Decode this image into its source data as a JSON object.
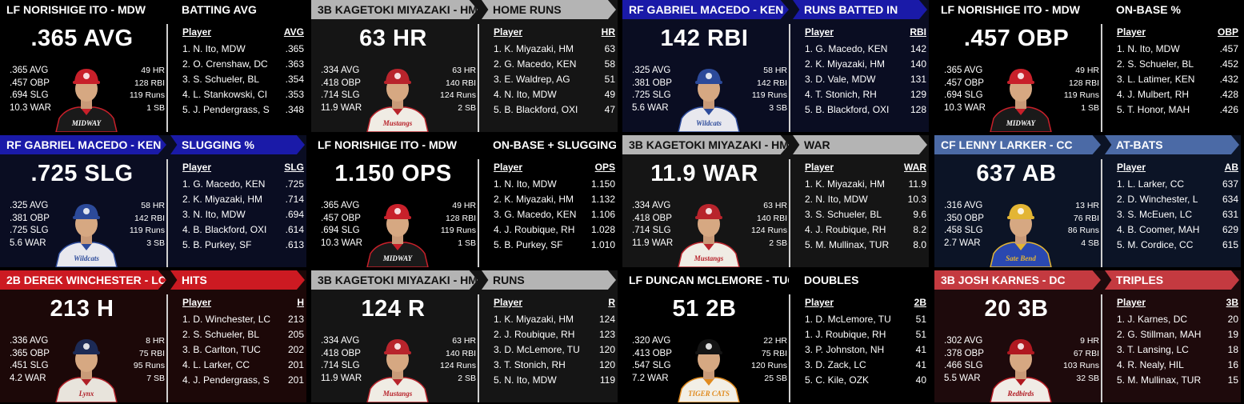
{
  "panels": [
    {
      "player_label": "LF NORISHIGE ITO - MDW",
      "category": "BATTING AVG",
      "headline": ".365 AVG",
      "stats_left": [
        ".365 AVG",
        ".457 OBP",
        ".694 SLG",
        "10.3 WAR"
      ],
      "stats_right": [
        "49 HR",
        "128 RBI",
        "119 Runs",
        "1 SB"
      ],
      "jersey_text": "MIDWAY",
      "col_player": "Player",
      "col_stat": "AVG",
      "leaders": [
        {
          "name": "1. N. Ito, MDW",
          "value": ".365"
        },
        {
          "name": "2. O. Crenshaw, DC",
          "value": ".363"
        },
        {
          "name": "3. S. Schueler, BL",
          "value": ".354"
        },
        {
          "name": "4. L. Stankowski, CI",
          "value": ".353"
        },
        {
          "name": "5. J. Pendergrass, S",
          "value": ".348"
        }
      ],
      "colors": {
        "header_bg": "#000000",
        "header_text": "#ffffff",
        "body_bg": "#000000",
        "cap": "#c8202a",
        "jersey": "#1a1a1a",
        "trim": "#c8202a"
      }
    },
    {
      "player_label": "3B KAGETOKI MIYAZAKI - HM",
      "category": "HOME RUNS",
      "headline": "63 HR",
      "stats_left": [
        ".334 AVG",
        ".418 OBP",
        ".714 SLG",
        "11.9 WAR"
      ],
      "stats_right": [
        "63 HR",
        "140 RBI",
        "124 Runs",
        "2 SB"
      ],
      "jersey_text": "Mustangs",
      "col_player": "Player",
      "col_stat": "HR",
      "leaders": [
        {
          "name": "1. K. Miyazaki, HM",
          "value": "63"
        },
        {
          "name": "2. G. Macedo, KEN",
          "value": "58"
        },
        {
          "name": "3. E. Waldrep, AG",
          "value": "51"
        },
        {
          "name": "4. N. Ito, MDW",
          "value": "49"
        },
        {
          "name": "5. B. Blackford, OXI",
          "value": "47"
        }
      ],
      "colors": {
        "header_bg": "#b4b4b4",
        "header_text": "#111111",
        "body_bg": "#151515",
        "cap": "#b8242c",
        "jersey": "#f0ece4",
        "trim": "#b8242c"
      }
    },
    {
      "player_label": "RF GABRIEL MACEDO - KEN",
      "category": "RUNS BATTED IN",
      "headline": "142 RBI",
      "stats_left": [
        ".325 AVG",
        ".381 OBP",
        ".725 SLG",
        "5.6 WAR"
      ],
      "stats_right": [
        "58 HR",
        "142 RBI",
        "119 Runs",
        "3 SB"
      ],
      "jersey_text": "Wildcats",
      "col_player": "Player",
      "col_stat": "RBI",
      "leaders": [
        {
          "name": "1. G. Macedo, KEN",
          "value": "142"
        },
        {
          "name": "2. K. Miyazaki, HM",
          "value": "140"
        },
        {
          "name": "3. D. Vale, MDW",
          "value": "131"
        },
        {
          "name": "4. T. Stonich, RH",
          "value": "129"
        },
        {
          "name": "5. B. Blackford, OXI",
          "value": "128"
        }
      ],
      "colors": {
        "header_bg": "#1a1aa8",
        "header_text": "#ffffff",
        "body_bg": "#0a0d22",
        "cap": "#2c4a9a",
        "jersey": "#e8e8ee",
        "trim": "#2c4a9a"
      }
    },
    {
      "player_label": "LF NORISHIGE ITO - MDW",
      "category": "ON-BASE %",
      "headline": ".457 OBP",
      "stats_left": [
        ".365 AVG",
        ".457 OBP",
        ".694 SLG",
        "10.3 WAR"
      ],
      "stats_right": [
        "49 HR",
        "128 RBI",
        "119 Runs",
        "1 SB"
      ],
      "jersey_text": "MIDWAY",
      "col_player": "Player",
      "col_stat": "OBP",
      "leaders": [
        {
          "name": "1. N. Ito, MDW",
          "value": ".457"
        },
        {
          "name": "2. S. Schueler, BL",
          "value": ".452"
        },
        {
          "name": "3. L. Latimer, KEN",
          "value": ".432"
        },
        {
          "name": "4. J. Mulbert, RH",
          "value": ".428"
        },
        {
          "name": "5. T. Honor, MAH",
          "value": ".426"
        }
      ],
      "colors": {
        "header_bg": "#000000",
        "header_text": "#ffffff",
        "body_bg": "#000000",
        "cap": "#c8202a",
        "jersey": "#1a1a1a",
        "trim": "#c8202a"
      }
    },
    {
      "player_label": "RF GABRIEL MACEDO - KEN",
      "category": "SLUGGING %",
      "headline": ".725 SLG",
      "stats_left": [
        ".325 AVG",
        ".381 OBP",
        ".725 SLG",
        "5.6 WAR"
      ],
      "stats_right": [
        "58 HR",
        "142 RBI",
        "119 Runs",
        "3 SB"
      ],
      "jersey_text": "Wildcats",
      "col_player": "Player",
      "col_stat": "SLG",
      "leaders": [
        {
          "name": "1. G. Macedo, KEN",
          "value": ".725"
        },
        {
          "name": "2. K. Miyazaki, HM",
          "value": ".714"
        },
        {
          "name": "3. N. Ito, MDW",
          "value": ".694"
        },
        {
          "name": "4. B. Blackford, OXI",
          "value": ".614"
        },
        {
          "name": "5. B. Purkey, SF",
          "value": ".613"
        }
      ],
      "colors": {
        "header_bg": "#1a1aa8",
        "header_text": "#ffffff",
        "body_bg": "#0a0d22",
        "cap": "#2c4a9a",
        "jersey": "#e8e8ee",
        "trim": "#2c4a9a"
      }
    },
    {
      "player_label": "LF NORISHIGE ITO - MDW",
      "category": "ON-BASE + SLUGGING",
      "headline": "1.150 OPS",
      "stats_left": [
        ".365 AVG",
        ".457 OBP",
        ".694 SLG",
        "10.3 WAR"
      ],
      "stats_right": [
        "49 HR",
        "128 RBI",
        "119 Runs",
        "1 SB"
      ],
      "jersey_text": "MIDWAY",
      "col_player": "Player",
      "col_stat": "OPS",
      "leaders": [
        {
          "name": "1. N. Ito, MDW",
          "value": "1.150"
        },
        {
          "name": "2. K. Miyazaki, HM",
          "value": "1.132"
        },
        {
          "name": "3. G. Macedo, KEN",
          "value": "1.106"
        },
        {
          "name": "4. J. Roubique, RH",
          "value": "1.028"
        },
        {
          "name": "5. B. Purkey, SF",
          "value": "1.010"
        }
      ],
      "colors": {
        "header_bg": "#000000",
        "header_text": "#ffffff",
        "body_bg": "#000000",
        "cap": "#c8202a",
        "jersey": "#1a1a1a",
        "trim": "#c8202a"
      }
    },
    {
      "player_label": "3B KAGETOKI MIYAZAKI - HM",
      "category": "WAR",
      "headline": "11.9 WAR",
      "stats_left": [
        ".334 AVG",
        ".418 OBP",
        ".714 SLG",
        "11.9 WAR"
      ],
      "stats_right": [
        "63 HR",
        "140 RBI",
        "124 Runs",
        "2 SB"
      ],
      "jersey_text": "Mustangs",
      "col_player": "Player",
      "col_stat": "WAR",
      "leaders": [
        {
          "name": "1. K. Miyazaki, HM",
          "value": "11.9"
        },
        {
          "name": "2. N. Ito, MDW",
          "value": "10.3"
        },
        {
          "name": "3. S. Schueler, BL",
          "value": "9.6"
        },
        {
          "name": "4. J. Roubique, RH",
          "value": "8.2"
        },
        {
          "name": "5. M. Mullinax, TUR",
          "value": "8.0"
        }
      ],
      "colors": {
        "header_bg": "#b4b4b4",
        "header_text": "#111111",
        "body_bg": "#151515",
        "cap": "#b8242c",
        "jersey": "#f0ece4",
        "trim": "#b8242c"
      }
    },
    {
      "player_label": "CF LENNY LARKER - CC",
      "category": "AT-BATS",
      "headline": "637 AB",
      "stats_left": [
        ".316 AVG",
        ".350 OBP",
        ".458 SLG",
        "2.7 WAR"
      ],
      "stats_right": [
        "13 HR",
        "76 RBI",
        "86 Runs",
        "4 SB"
      ],
      "jersey_text": "Sate Bend",
      "col_player": "Player",
      "col_stat": "AB",
      "leaders": [
        {
          "name": "1. L. Larker, CC",
          "value": "637"
        },
        {
          "name": "2. D. Winchester, L",
          "value": "634"
        },
        {
          "name": "3. S. McEuen, LC",
          "value": "631"
        },
        {
          "name": "4. B. Coomer, MAH",
          "value": "629"
        },
        {
          "name": "5. M. Cordice, CC",
          "value": "615"
        }
      ],
      "colors": {
        "header_bg": "#4b6aa6",
        "header_text": "#ffffff",
        "body_bg": "#0c1426",
        "cap": "#e3b534",
        "jersey": "#2a48b0",
        "trim": "#e3b534"
      }
    },
    {
      "player_label": "2B DEREK WINCHESTER - LC",
      "category": "HITS",
      "headline": "213 H",
      "stats_left": [
        ".336 AVG",
        ".365 OBP",
        ".451 SLG",
        "4.2 WAR"
      ],
      "stats_right": [
        "8 HR",
        "75 RBI",
        "95 Runs",
        "7 SB"
      ],
      "jersey_text": "Lynx",
      "col_player": "Player",
      "col_stat": "H",
      "leaders": [
        {
          "name": "1. D. Winchester, LC",
          "value": "213"
        },
        {
          "name": "2. S. Schueler, BL",
          "value": "205"
        },
        {
          "name": "3. B. Carlton, TUC",
          "value": "202"
        },
        {
          "name": "4. L. Larker, CC",
          "value": "201"
        },
        {
          "name": "4. J. Pendergrass, S",
          "value": "201"
        }
      ],
      "colors": {
        "header_bg": "#cc1a22",
        "header_text": "#ffffff",
        "body_bg": "#1c0808",
        "cap": "#1c2a55",
        "jersey": "#e8e4dc",
        "trim": "#b02028"
      }
    },
    {
      "player_label": "3B KAGETOKI MIYAZAKI - HM",
      "category": "RUNS",
      "headline": "124 R",
      "stats_left": [
        ".334 AVG",
        ".418 OBP",
        ".714 SLG",
        "11.9 WAR"
      ],
      "stats_right": [
        "63 HR",
        "140 RBI",
        "124 Runs",
        "2 SB"
      ],
      "jersey_text": "Mustangs",
      "col_player": "Player",
      "col_stat": "R",
      "leaders": [
        {
          "name": "1. K. Miyazaki, HM",
          "value": "124"
        },
        {
          "name": "2. J. Roubique, RH",
          "value": "123"
        },
        {
          "name": "3. D. McLemore, TU",
          "value": "120"
        },
        {
          "name": "3. T. Stonich, RH",
          "value": "120"
        },
        {
          "name": "5. N. Ito, MDW",
          "value": "119"
        }
      ],
      "colors": {
        "header_bg": "#b4b4b4",
        "header_text": "#111111",
        "body_bg": "#151515",
        "cap": "#b8242c",
        "jersey": "#f0ece4",
        "trim": "#b8242c"
      }
    },
    {
      "player_label": "LF DUNCAN MCLEMORE - TUC",
      "category": "DOUBLES",
      "headline": "51 2B",
      "stats_left": [
        ".320 AVG",
        ".413 OBP",
        ".547 SLG",
        "7.2 WAR"
      ],
      "stats_right": [
        "22 HR",
        "75 RBI",
        "120 Runs",
        "25 SB"
      ],
      "jersey_text": "TIGER CATS",
      "col_player": "Player",
      "col_stat": "2B",
      "leaders": [
        {
          "name": "1. D. McLemore, TU",
          "value": "51"
        },
        {
          "name": "1. J. Roubique, RH",
          "value": "51"
        },
        {
          "name": "3. P. Johnston, NH",
          "value": "41"
        },
        {
          "name": "3. D. Zack, LC",
          "value": "41"
        },
        {
          "name": "5. C. Kile, OZK",
          "value": "40"
        }
      ],
      "colors": {
        "header_bg": "#000000",
        "header_text": "#ffffff",
        "body_bg": "#000000",
        "cap": "#141414",
        "jersey": "#f2efe6",
        "trim": "#e08a1e"
      }
    },
    {
      "player_label": "3B JOSH KARNES - DC",
      "category": "TRIPLES",
      "headline": "20 3B",
      "stats_left": [
        ".302 AVG",
        ".378 OBP",
        ".466 SLG",
        "5.5 WAR"
      ],
      "stats_right": [
        "9 HR",
        "67 RBI",
        "103 Runs",
        "32 SB"
      ],
      "jersey_text": "Redbirds",
      "col_player": "Player",
      "col_stat": "3B",
      "leaders": [
        {
          "name": "1. J. Karnes, DC",
          "value": "20"
        },
        {
          "name": "2. G. Stillman, MAH",
          "value": "19"
        },
        {
          "name": "3. T. Lansing, LC",
          "value": "18"
        },
        {
          "name": "4. R. Nealy, HIL",
          "value": "16"
        },
        {
          "name": "5. M. Mullinax, TUR",
          "value": "15"
        }
      ],
      "colors": {
        "header_bg": "#c43a40",
        "header_text": "#ffffff",
        "body_bg": "#1e0a0c",
        "cap": "#b01820",
        "jersey": "#f0ece6",
        "trim": "#b01820"
      }
    }
  ]
}
